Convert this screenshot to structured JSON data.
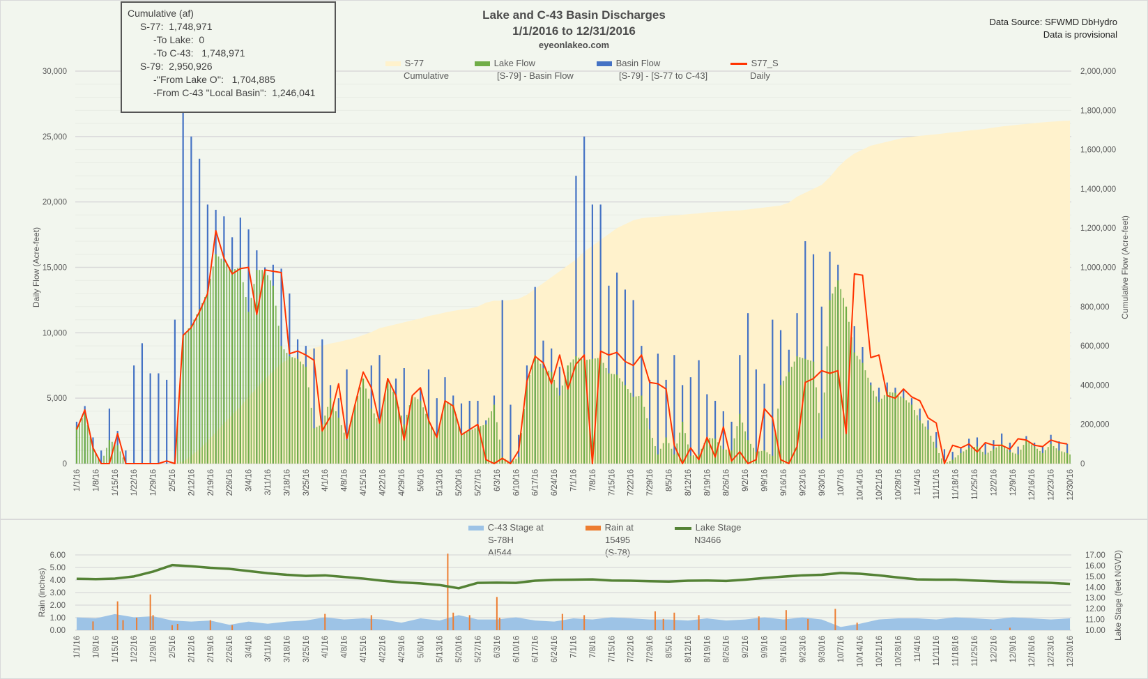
{
  "header": {
    "title": "Lake and C-43 Basin Discharges",
    "date_range": "1/1/2016 to 12/31/2016",
    "site": "eyeonlakeo.com",
    "source_line1": "Data Source: SFWMD DbHydro",
    "source_line2": "Data is provisional"
  },
  "infobox": {
    "lines": [
      "Cumulative (af)",
      "S-77:  1,748,971",
      "-To Lake:  0",
      "-To C-43:   1,748,971",
      "S-79:  2,950,926",
      "-''From Lake O'':   1,704,885",
      "-From C-43 ''Local Basin'':  1,246,041"
    ]
  },
  "colors": {
    "background": "#f2f6ee",
    "cumulative": "#fff2cc",
    "lake_flow": "#70ad47",
    "basin_flow": "#4472c4",
    "s77_daily": "#ff3300",
    "c43_stage": "#9dc3e6",
    "rain": "#ed7d31",
    "lake_stage": "#548235",
    "grid": "#d9d9d9"
  },
  "chart_data": [
    {
      "type": "bar",
      "title": "Lake and C-43 Basin Discharges",
      "ylabel": "Daily Flow (Acre-feet)",
      "y2label": "Cumulative Flow (Acre-feet)",
      "ylim": [
        0,
        30000
      ],
      "y2lim": [
        0,
        2000000
      ],
      "yticks": [
        "0",
        "5,000",
        "10,000",
        "15,000",
        "20,000",
        "25,000",
        "30,000"
      ],
      "y2ticks": [
        "0",
        "200,000",
        "400,000",
        "600,000",
        "800,000",
        "1,000,000",
        "1,200,000",
        "1,400,000",
        "1,600,000",
        "1,800,000",
        "2,000,000"
      ],
      "grid": true,
      "legend_position": "top-center",
      "legend": [
        {
          "name": "S-77",
          "sub": "Cumulative",
          "kind": "area"
        },
        {
          "name": "Lake Flow",
          "sub": "[S-79] - Basin Flow",
          "kind": "bar"
        },
        {
          "name": "Basin Flow",
          "sub": "[S-79] - [S-77 to C-43]",
          "kind": "bar"
        },
        {
          "name": "S77_S",
          "sub": "Daily",
          "kind": "line"
        }
      ],
      "xticks": [
        "1/1/16",
        "1/8/16",
        "1/15/16",
        "1/22/16",
        "1/29/16",
        "2/5/16",
        "2/12/16",
        "2/19/16",
        "2/26/16",
        "3/4/16",
        "3/11/16",
        "3/18/16",
        "3/25/16",
        "4/1/16",
        "4/8/16",
        "4/15/16",
        "4/22/16",
        "4/29/16",
        "5/6/16",
        "5/13/16",
        "5/20/16",
        "5/27/16",
        "6/3/16",
        "6/10/16",
        "6/17/16",
        "6/24/16",
        "7/1/16",
        "7/8/16",
        "7/15/16",
        "7/22/16",
        "7/29/16",
        "8/5/16",
        "8/12/16",
        "8/19/16",
        "8/26/16",
        "9/2/16",
        "9/9/16",
        "9/16/16",
        "9/23/16",
        "9/30/16",
        "10/7/16",
        "10/14/16",
        "10/21/16",
        "10/28/16",
        "11/4/16",
        "11/11/16",
        "11/18/16",
        "11/25/16",
        "12/2/16",
        "12/9/16",
        "12/16/16",
        "12/23/16",
        "12/30/16"
      ],
      "x_day_step": 3,
      "series": [
        {
          "name": "S-79 Total (Lake Flow + Basin Flow)",
          "values": [
            3200,
            4400,
            2000,
            1000,
            4200,
            2500,
            1000,
            7500,
            9200,
            6900,
            6900,
            6400,
            11000,
            27000,
            25000,
            23300,
            19800,
            19400,
            18900,
            17300,
            18800,
            17900,
            16300,
            15000,
            15200,
            14900,
            13000,
            9500,
            9000,
            8800,
            9500,
            6000,
            5000,
            7200,
            4400,
            6000,
            7500,
            8300,
            5700,
            6500,
            7300,
            4600,
            5700,
            7200,
            5000,
            6600,
            5200,
            4600,
            4800,
            4800,
            3300,
            5200,
            12500,
            4500,
            2200,
            7500,
            13500,
            9400,
            8800,
            7400,
            7000,
            22000,
            25000,
            19800,
            19800,
            13600,
            14600,
            13300,
            12500,
            9000,
            6400,
            8400,
            6400,
            8300,
            6000,
            6600,
            7900,
            5300,
            4800,
            4000,
            3200,
            8300,
            11500,
            7200,
            6100,
            11000,
            10200,
            8700,
            11500,
            17000,
            16000,
            12000,
            16200,
            15200,
            11000,
            10500,
            8900,
            6200,
            5800,
            6200,
            5800,
            5700,
            5000,
            4200,
            3300,
            2400,
            1100,
            900,
            1200,
            1900,
            2000,
            1500,
            1800,
            2300,
            1600,
            1300,
            2100,
            1600,
            1300,
            2200,
            1700,
            1500,
            900
          ]
        },
        {
          "name": "Lake Flow",
          "values": [
            2800,
            3800,
            1200,
            0,
            1800,
            1400,
            0,
            0,
            0,
            0,
            0,
            0,
            0,
            9800,
            10600,
            11800,
            13200,
            16000,
            15500,
            14800,
            15000,
            11600,
            14800,
            14800,
            13600,
            9000,
            8200,
            8000,
            7400,
            2700,
            3000,
            5000,
            3500,
            1800,
            4500,
            6500,
            4200,
            3100,
            6500,
            5000,
            3000,
            5200,
            4800,
            3300,
            2000,
            4800,
            4500,
            2300,
            2500,
            2800,
            3000,
            4500,
            500,
            100,
            500,
            6000,
            8300,
            7300,
            7000,
            5200,
            7500,
            8200,
            7900,
            8000,
            8100,
            6900,
            6800,
            6000,
            5100,
            5200,
            2600,
            700,
            2000,
            700,
            3200,
            600,
            700,
            2000,
            1900,
            1100,
            1000,
            3800,
            1800,
            900,
            1000,
            600,
            6000,
            7000,
            8200,
            8000,
            7800,
            1900,
            12500,
            14000,
            12000,
            8500,
            7700,
            6000,
            4700,
            5500,
            5400,
            5000,
            4500,
            3300,
            2600,
            1200,
            0,
            300,
            800,
            1200,
            1300,
            700,
            1100,
            1500,
            900,
            700,
            1800,
            1300,
            800,
            1500,
            1000,
            800,
            500
          ]
        },
        {
          "name": "S77_S Daily",
          "values": [
            2600,
            4100,
            1200,
            0,
            0,
            2300,
            0,
            0,
            0,
            0,
            0,
            200,
            0,
            9800,
            10400,
            11600,
            13000,
            17800,
            15700,
            14500,
            14900,
            15000,
            11400,
            14800,
            14700,
            14600,
            8400,
            8600,
            8300,
            7900,
            2500,
            3600,
            6100,
            1900,
            4500,
            7000,
            5800,
            3100,
            6500,
            5200,
            1800,
            5200,
            5800,
            3300,
            2000,
            4800,
            4400,
            2200,
            2600,
            3000,
            300,
            0,
            400,
            0,
            1000,
            6300,
            8200,
            7700,
            6100,
            8300,
            5700,
            7600,
            8300,
            0,
            8600,
            8300,
            8500,
            7800,
            7500,
            8300,
            6200,
            6100,
            5700,
            1400,
            0,
            1200,
            300,
            2000,
            500,
            2800,
            200,
            900,
            0,
            300,
            4200,
            3500,
            300,
            0,
            1300,
            6200,
            6500,
            7100,
            6900,
            7100,
            2300,
            14500,
            14400,
            8100,
            8300,
            5200,
            5000,
            5700,
            5100,
            4800,
            3500,
            3100,
            0,
            1400,
            1200,
            1500,
            900,
            1600,
            1400,
            1400,
            1100,
            1900,
            1800,
            1400,
            1300,
            1800,
            1600,
            1500,
            1100
          ]
        },
        {
          "name": "S-77 Cumulative",
          "values": [
            0,
            0,
            0,
            0,
            0,
            0,
            0,
            0,
            0,
            0,
            0,
            0,
            0,
            10000,
            40000,
            75000,
            115000,
            160000,
            205000,
            250000,
            290000,
            340000,
            385000,
            430000,
            470000,
            510000,
            535000,
            555000,
            575000,
            590000,
            600000,
            612000,
            620000,
            630000,
            640000,
            655000,
            670000,
            690000,
            700000,
            710000,
            720000,
            730000,
            740000,
            752000,
            760000,
            770000,
            778000,
            785000,
            790000,
            800000,
            820000,
            830000,
            830000,
            834000,
            840000,
            860000,
            890000,
            920000,
            950000,
            980000,
            1010000,
            1040000,
            1080000,
            1110000,
            1140000,
            1170000,
            1200000,
            1220000,
            1240000,
            1250000,
            1255000,
            1258000,
            1262000,
            1265000,
            1268000,
            1272000,
            1275000,
            1280000,
            1283000,
            1285000,
            1288000,
            1290000,
            1295000,
            1300000,
            1305000,
            1310000,
            1315000,
            1330000,
            1360000,
            1380000,
            1400000,
            1420000,
            1460000,
            1510000,
            1550000,
            1580000,
            1600000,
            1620000,
            1630000,
            1640000,
            1650000,
            1660000,
            1665000,
            1670000,
            1674000,
            1678000,
            1683000,
            1688000,
            1692000,
            1697000,
            1701000,
            1706000,
            1712000,
            1718000,
            1722000,
            1727000,
            1731000,
            1735000,
            1739000,
            1742000,
            1745000,
            1747000,
            1748971
          ]
        }
      ]
    },
    {
      "type": "line",
      "ylabel": "Rain (inches)",
      "y2label": "Lake Stage (feet NGVD)",
      "ylim": [
        0,
        6
      ],
      "y2lim": [
        10,
        17
      ],
      "yticks": [
        "0.00",
        "1.00",
        "2.00",
        "3.00",
        "4.00",
        "5.00",
        "6.00"
      ],
      "y2ticks": [
        "10.00",
        "11.00",
        "12.00",
        "13.00",
        "14.00",
        "15.00",
        "16.00",
        "17.00"
      ],
      "grid": true,
      "legend_position": "top-center",
      "legend": [
        {
          "name": "C-43 Stage at",
          "sub": [
            "S-78H",
            "AI544"
          ],
          "kind": "area"
        },
        {
          "name": "Rain at",
          "sub": [
            "15495",
            "(S-78)"
          ],
          "kind": "bar"
        },
        {
          "name": "Lake Stage",
          "sub": [
            "N3466"
          ],
          "kind": "line"
        }
      ],
      "xticks": [
        "1/1/16",
        "1/8/16",
        "1/15/16",
        "1/22/16",
        "1/29/16",
        "2/5/16",
        "2/12/16",
        "2/19/16",
        "2/26/16",
        "3/4/16",
        "3/11/16",
        "3/18/16",
        "3/25/16",
        "4/1/16",
        "4/8/16",
        "4/15/16",
        "4/22/16",
        "4/29/16",
        "5/6/16",
        "5/13/16",
        "5/20/16",
        "5/27/16",
        "6/3/16",
        "6/10/16",
        "6/17/16",
        "6/24/16",
        "7/1/16",
        "7/8/16",
        "7/15/16",
        "7/22/16",
        "7/29/16",
        "8/5/16",
        "8/12/16",
        "8/19/16",
        "8/26/16",
        "9/2/16",
        "9/9/16",
        "9/16/16",
        "9/23/16",
        "9/30/16",
        "10/7/16",
        "10/14/16",
        "10/21/16",
        "10/28/16",
        "11/4/16",
        "11/11/16",
        "11/18/16",
        "11/25/16",
        "12/2/16",
        "12/9/16",
        "12/16/16",
        "12/23/16",
        "12/30/16"
      ],
      "x_day_step": 7,
      "series": [
        {
          "name": "Lake Stage N3466",
          "axis": "right",
          "values": [
            14.78,
            14.75,
            14.8,
            15.0,
            15.45,
            16.05,
            15.95,
            15.8,
            15.7,
            15.5,
            15.3,
            15.15,
            15.05,
            15.1,
            14.95,
            14.8,
            14.6,
            14.45,
            14.35,
            14.2,
            13.9,
            14.4,
            14.42,
            14.4,
            14.6,
            14.68,
            14.7,
            14.72,
            14.62,
            14.6,
            14.55,
            14.52,
            14.6,
            14.62,
            14.58,
            14.7,
            14.85,
            14.98,
            15.1,
            15.15,
            15.32,
            15.25,
            15.1,
            14.9,
            14.72,
            14.7,
            14.7,
            14.62,
            14.55,
            14.48,
            14.45,
            14.4,
            14.3
          ]
        },
        {
          "name": "C-43 Stage at S-78H AI544",
          "axis": "right",
          "values": [
            11.2,
            11.1,
            11.5,
            11.2,
            11.3,
            10.9,
            10.8,
            10.9,
            10.5,
            10.8,
            10.6,
            10.8,
            10.9,
            11.2,
            11.0,
            11.1,
            11.0,
            10.7,
            11.1,
            10.9,
            11.4,
            11.0,
            11.0,
            11.2,
            10.9,
            10.8,
            11.1,
            11.0,
            11.2,
            11.1,
            11.0,
            11.0,
            10.9,
            11.1,
            10.9,
            11.0,
            11.2,
            11.0,
            11.2,
            11.0,
            10.3,
            10.6,
            11.0,
            11.1,
            11.1,
            11.0,
            11.2,
            11.1,
            11.0,
            11.2,
            11.1,
            11.0,
            11.1
          ]
        },
        {
          "name": "Rain at 15495 (S-78)",
          "axis": "left",
          "type": "bar",
          "points": [
            [
              6,
              0.7
            ],
            [
              15,
              2.3
            ],
            [
              17,
              0.8
            ],
            [
              22,
              1.0
            ],
            [
              27,
              2.85
            ],
            [
              28,
              1.2
            ],
            [
              35,
              0.4
            ],
            [
              37,
              0.5
            ],
            [
              49,
              0.8
            ],
            [
              57,
              0.4
            ],
            [
              91,
              1.3
            ],
            [
              108,
              1.2
            ],
            [
              136,
              6.1
            ],
            [
              138,
              1.4
            ],
            [
              144,
              1.2
            ],
            [
              154,
              2.65
            ],
            [
              155,
              1.0
            ],
            [
              178,
              1.3
            ],
            [
              186,
              1.2
            ],
            [
              212,
              1.5
            ],
            [
              215,
              0.9
            ],
            [
              219,
              1.4
            ],
            [
              228,
              1.2
            ],
            [
              250,
              1.1
            ],
            [
              260,
              1.6
            ],
            [
              268,
              0.9
            ],
            [
              278,
              1.7
            ],
            [
              286,
              0.6
            ],
            [
              335,
              0.1
            ],
            [
              342,
              0.2
            ]
          ]
        }
      ]
    }
  ]
}
